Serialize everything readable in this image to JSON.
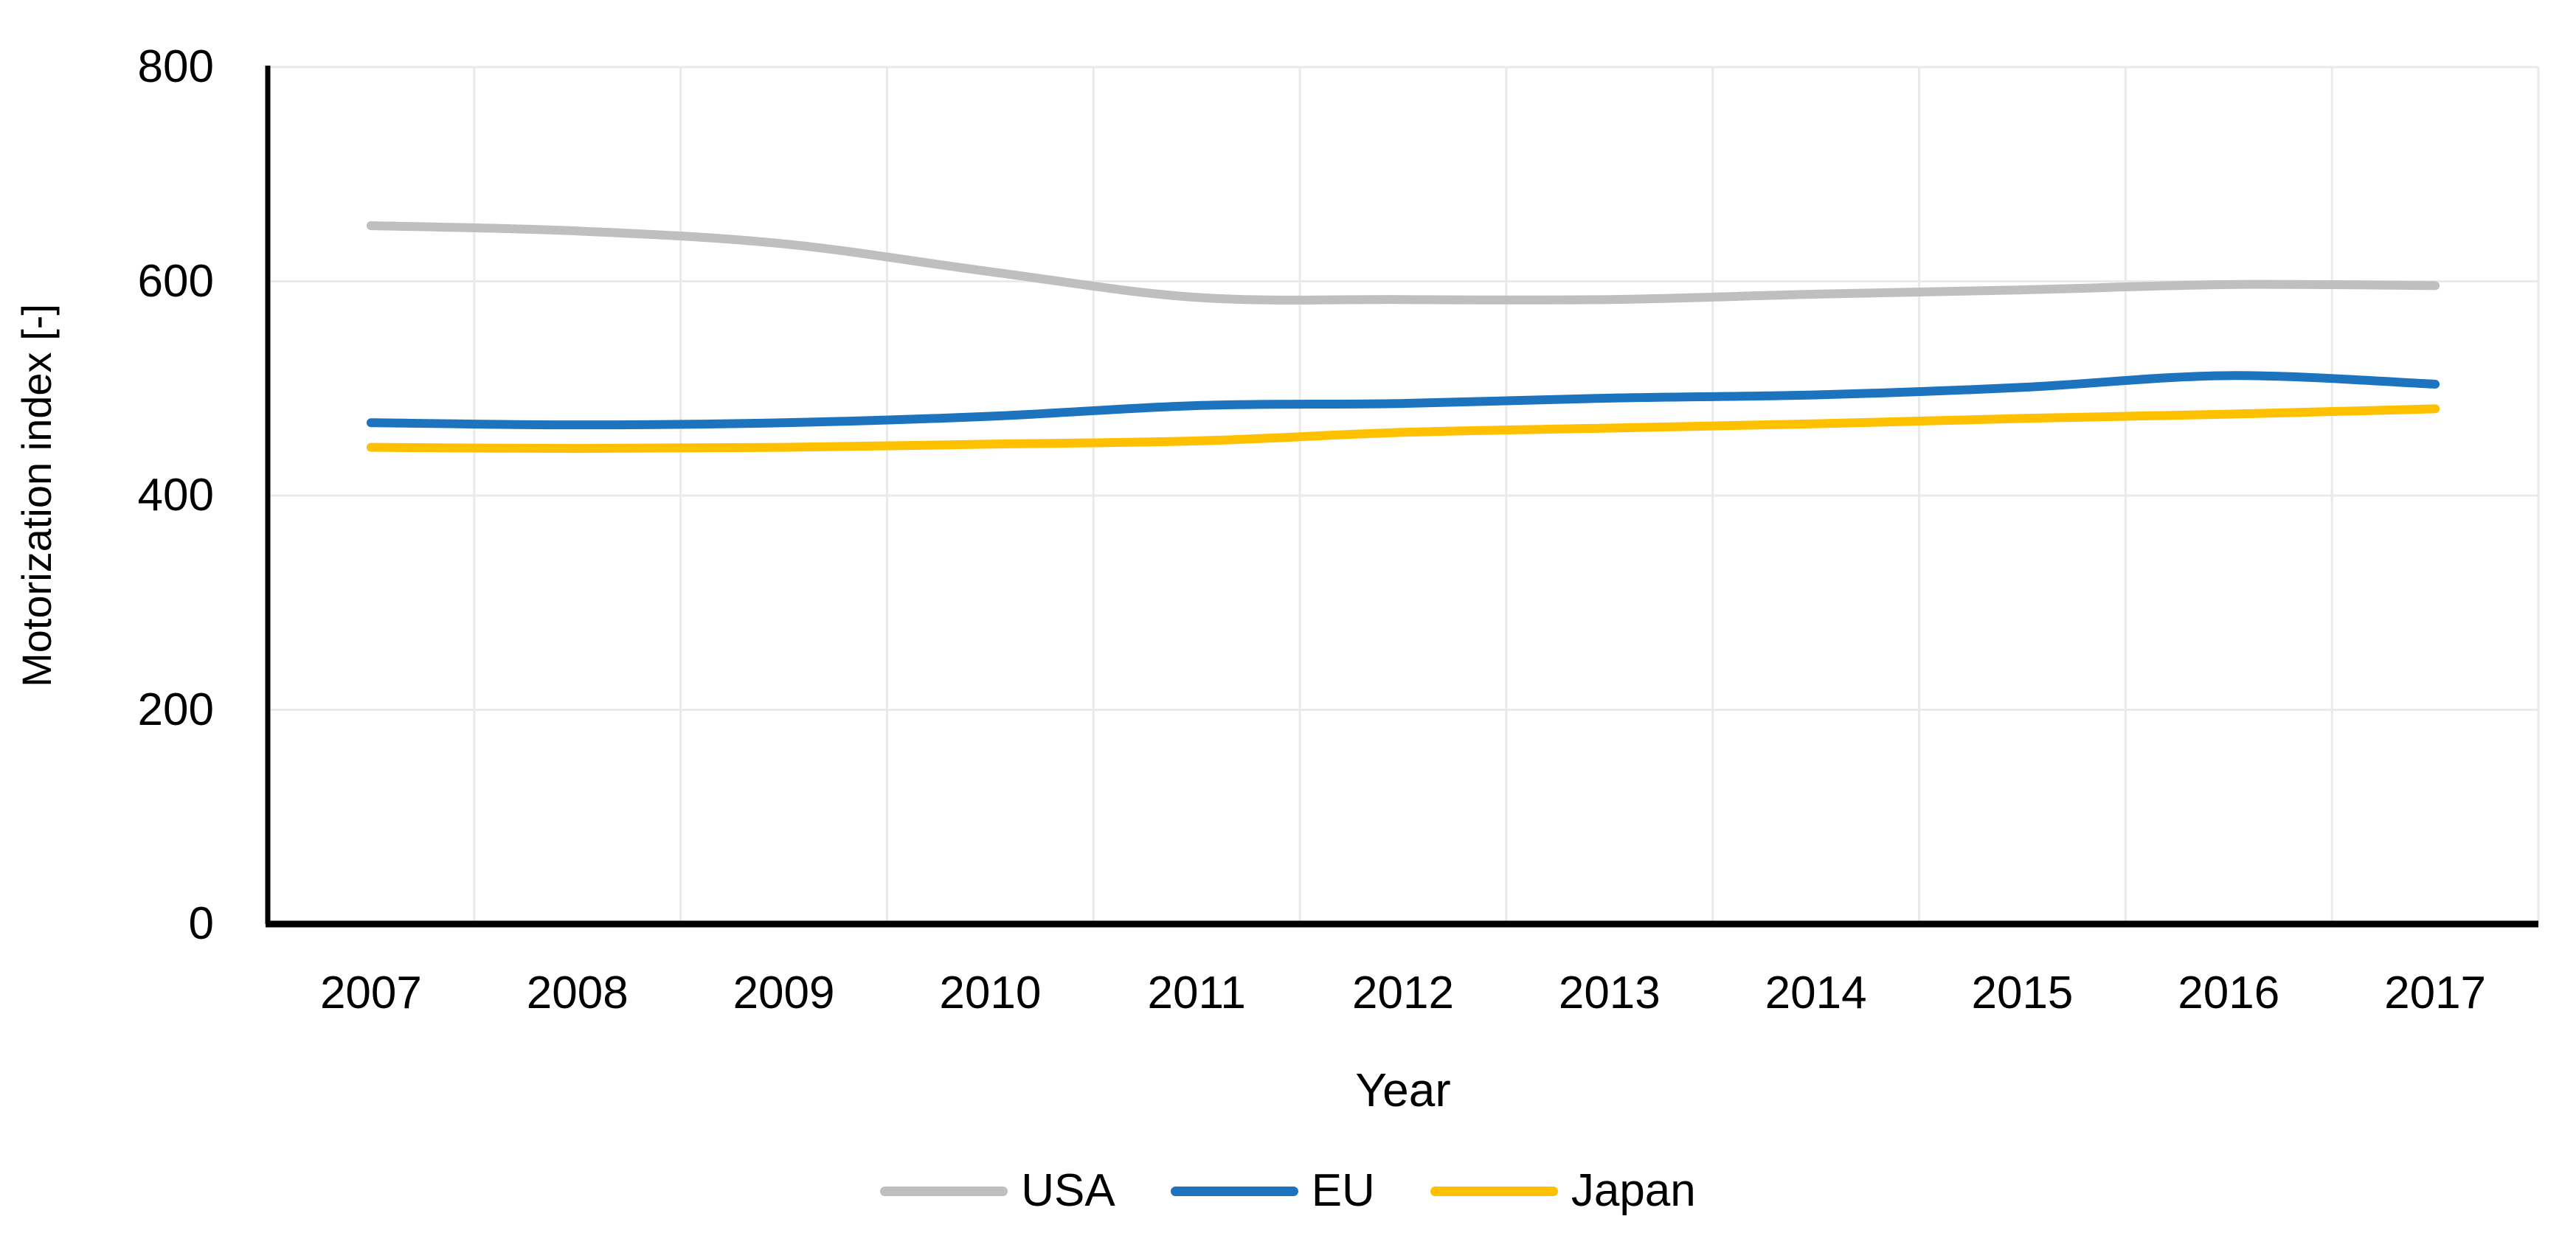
{
  "chart_data": {
    "type": "line",
    "title": "",
    "xlabel": "Year",
    "ylabel": "Motorization index [-]",
    "x": [
      "2007",
      "2008",
      "2009",
      "2010",
      "2011",
      "2012",
      "2013",
      "2014",
      "2015",
      "2016",
      "2017"
    ],
    "ylim": [
      0,
      800
    ],
    "yticks": [
      0,
      200,
      400,
      600,
      800
    ],
    "grid": true,
    "smoothed_lines": true,
    "legend_position": "bottom",
    "gridline_color": "#EAEAEA",
    "axis_color": "#000000",
    "background_color": "#FFFFFF",
    "series": [
      {
        "name": "USA",
        "color": "#BFBFBF",
        "values": [
          652,
          647,
          635,
          609,
          585,
          583,
          583,
          588,
          592,
          597,
          596
        ]
      },
      {
        "name": "EU",
        "color": "#1E73BE",
        "values": [
          468,
          466,
          468,
          474,
          484,
          486,
          491,
          494,
          501,
          512,
          504
        ]
      },
      {
        "name": "Japan",
        "color": "#FFC000",
        "values": [
          445,
          444,
          445,
          448,
          451,
          459,
          463,
          467,
          472,
          476,
          481
        ]
      }
    ]
  }
}
